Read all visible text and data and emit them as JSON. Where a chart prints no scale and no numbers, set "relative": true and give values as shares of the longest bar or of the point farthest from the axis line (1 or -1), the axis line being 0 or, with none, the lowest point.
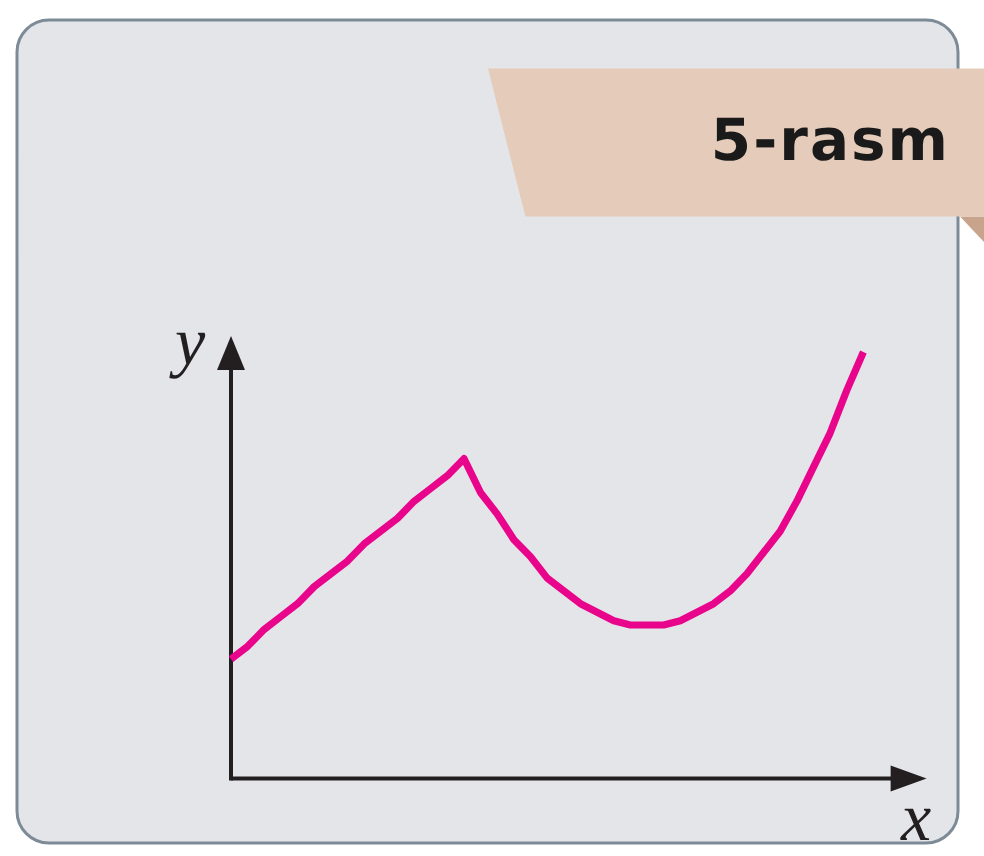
{
  "chart_data": {
    "type": "line",
    "title": "5-rasm",
    "xlabel": "x",
    "ylabel": "y",
    "relative": true,
    "color": "#e8058c",
    "categories": [
      null,
      null,
      null,
      null,
      null,
      null,
      null,
      null,
      null,
      null,
      null,
      null,
      null,
      null,
      null,
      null,
      null,
      null,
      null,
      null,
      null,
      null,
      null,
      null,
      null,
      null,
      null,
      null,
      null,
      null,
      null,
      null,
      null,
      null,
      null,
      null,
      null,
      null,
      null
    ],
    "values": [
      0.28,
      0.31,
      0.35,
      0.38,
      0.41,
      0.45,
      0.48,
      0.51,
      0.55,
      0.58,
      0.61,
      0.65,
      0.68,
      0.71,
      0.75,
      0.67,
      0.62,
      0.56,
      0.52,
      0.47,
      0.44,
      0.41,
      0.39,
      0.37,
      0.36,
      0.36,
      0.36,
      0.37,
      0.39,
      0.41,
      0.44,
      0.48,
      0.53,
      0.58,
      0.65,
      0.73,
      0.81,
      0.91,
      1
    ]
  }
}
